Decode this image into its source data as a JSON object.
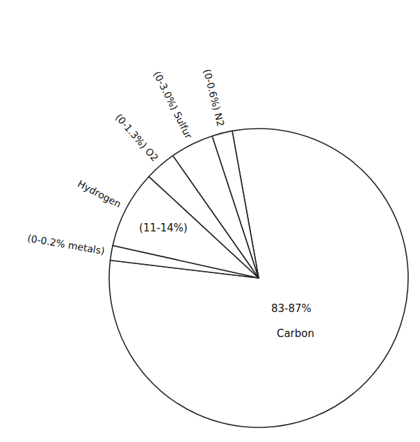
{
  "chart_data": {
    "type": "pie",
    "categories": [
      "Carbon",
      "(0-0.2% metals)",
      "Hydrogen",
      "(0-1.3%) O2",
      "(0-3.0%) Sulfur",
      "(0-0.6%) N2"
    ],
    "values": [
      79.8,
      1.6,
      8.4,
      3.4,
      4.7,
      2.2
    ],
    "color": "#ffffff",
    "annotations": [
      {
        "text": "83-87%",
        "slice": 0
      },
      {
        "text": "(11-14%)",
        "slice": 2
      }
    ]
  }
}
